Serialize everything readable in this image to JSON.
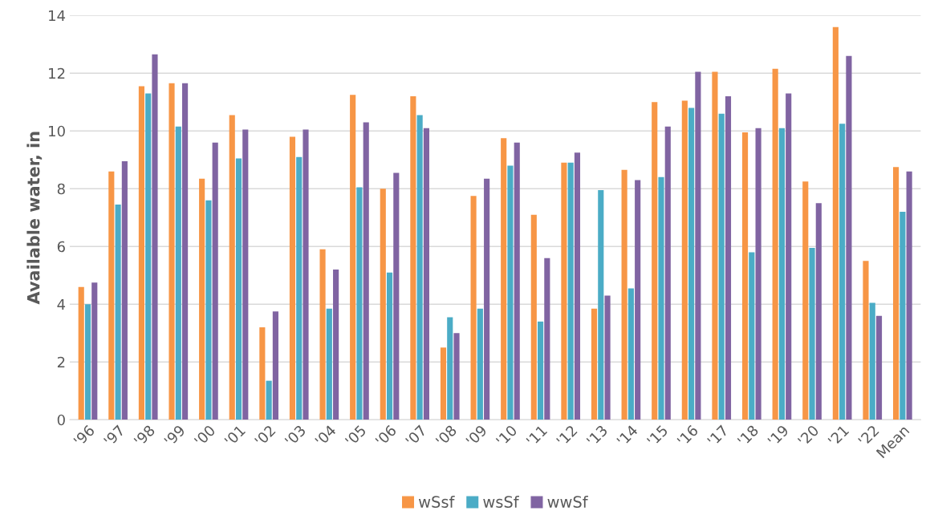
{
  "chart_data": {
    "type": "bar",
    "ylabel": "Available water, in",
    "categories": [
      "'96",
      "'97",
      "'98",
      "'99",
      "'00",
      "'01",
      "'02",
      "'03",
      "'04",
      "'05",
      "'06",
      "'07",
      "'08",
      "'09",
      "'10",
      "'11",
      "'12",
      "'13",
      "'14",
      "'15",
      "'16",
      "'17",
      "'18",
      "'19",
      "'20",
      "'21",
      "'22",
      "Mean"
    ],
    "series": [
      {
        "name": "wSsf",
        "color": "#f79646",
        "values": [
          4.6,
          8.6,
          11.55,
          11.65,
          8.35,
          10.55,
          3.2,
          9.8,
          5.9,
          11.25,
          8.0,
          11.2,
          2.5,
          7.75,
          9.75,
          7.1,
          8.9,
          3.85,
          8.65,
          11.0,
          11.05,
          12.05,
          9.95,
          12.15,
          8.25,
          13.6,
          5.5,
          8.75
        ]
      },
      {
        "name": "wsSf",
        "color": "#4bacc6",
        "values": [
          4.0,
          7.45,
          11.3,
          10.15,
          7.6,
          9.05,
          1.35,
          9.1,
          3.85,
          8.05,
          5.1,
          10.55,
          3.55,
          3.85,
          8.8,
          3.4,
          8.9,
          7.95,
          4.55,
          8.4,
          10.8,
          10.6,
          5.8,
          10.1,
          5.95,
          10.25,
          4.05,
          7.2
        ]
      },
      {
        "name": "wwSf",
        "color": "#8064a2",
        "values": [
          4.75,
          8.95,
          12.65,
          11.65,
          9.6,
          10.05,
          3.75,
          10.05,
          5.2,
          10.3,
          8.55,
          10.1,
          3.0,
          8.35,
          9.6,
          5.6,
          9.25,
          4.3,
          8.3,
          10.15,
          12.05,
          11.2,
          10.1,
          11.3,
          7.5,
          12.6,
          3.6,
          8.6
        ]
      }
    ],
    "ylim": [
      0,
      14
    ],
    "yticks": [
      0,
      2,
      4,
      6,
      8,
      10,
      12,
      14
    ],
    "grid": "y",
    "legend": "bottom"
  }
}
